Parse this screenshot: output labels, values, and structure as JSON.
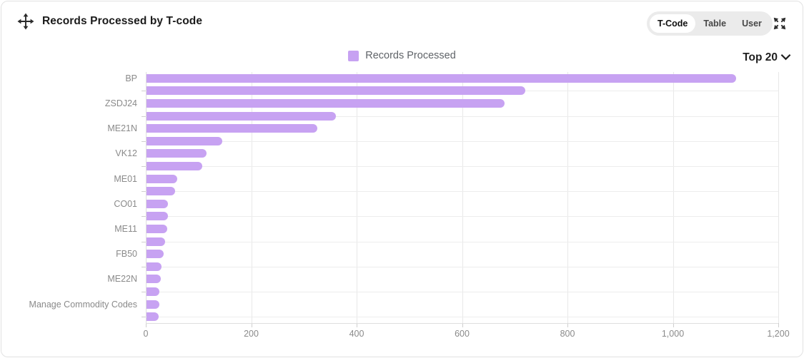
{
  "widget": {
    "title": "Records Processed by T-code",
    "view_toggle": {
      "options": [
        "T-Code",
        "Table",
        "User"
      ],
      "selected": "T-Code"
    },
    "top_filter": {
      "label": "Top 20"
    }
  },
  "legend": {
    "label": "Records Processed"
  },
  "colors": {
    "bar": "#c7a2f2",
    "toggle_bg": "#ebebeb",
    "toggle_selected_bg": "#ffffff",
    "grid": "#e8e8e8",
    "axis_text": "#8a8a8a",
    "title_text": "#1b1b1b"
  },
  "chart_data": {
    "type": "bar",
    "orientation": "horizontal",
    "title": "Records Processed by T-code",
    "series_name": "Records Processed",
    "categories": [
      "BP",
      "",
      "ZSDJ24",
      "",
      "ME21N",
      "",
      "VK12",
      "",
      "ME01",
      "",
      "CO01",
      "",
      "ME11",
      "",
      "FB50",
      "",
      "ME22N",
      "",
      "Manage Commodity Codes",
      ""
    ],
    "values": [
      1120,
      720,
      680,
      360,
      325,
      145,
      115,
      107,
      60,
      55,
      42,
      42,
      40,
      36,
      34,
      30,
      29,
      26,
      26,
      24
    ],
    "xlabel": "",
    "ylabel": "",
    "xlim": [
      0,
      1200
    ],
    "x_ticks": [
      0,
      200,
      400,
      600,
      800,
      1000,
      1200
    ],
    "x_tick_labels": [
      "0",
      "200",
      "400",
      "600",
      "800",
      "1,000",
      "1,200"
    ],
    "grid": true,
    "legend_position": "top",
    "bar_color": "#c7a2f2",
    "label_skip": "every other category label hidden"
  }
}
